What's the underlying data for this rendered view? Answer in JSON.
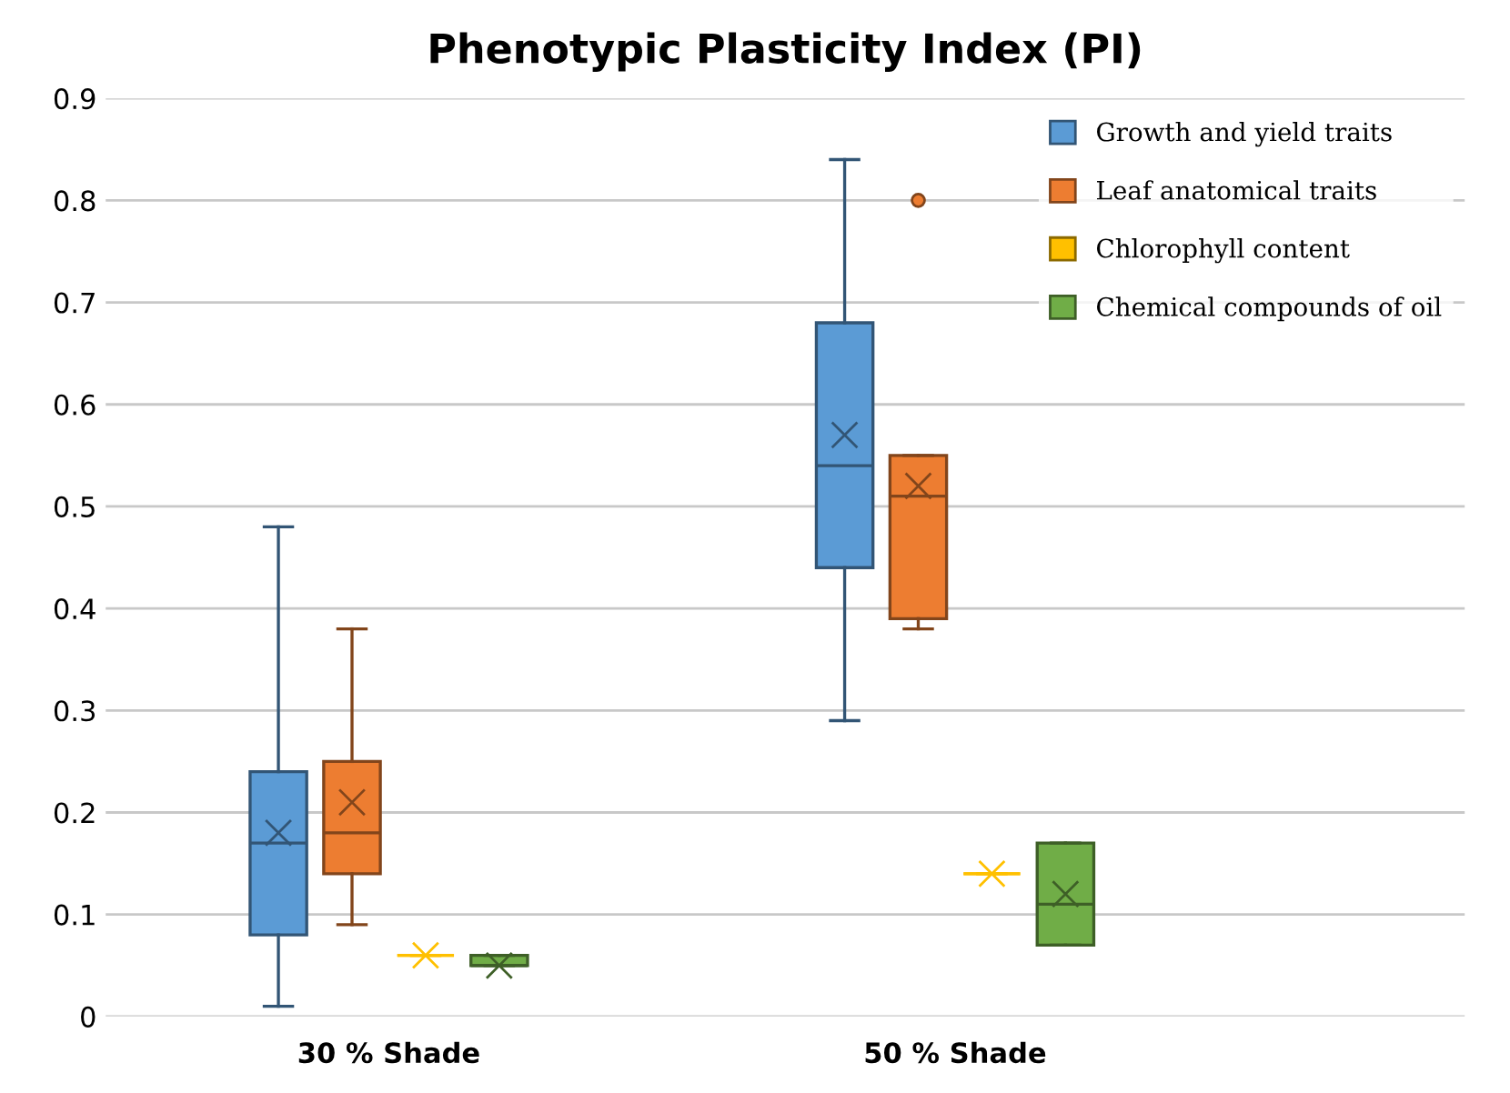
{
  "chart_data": {
    "type": "box",
    "title": "Phenotypic Plasticity Index (PI)",
    "categories": [
      "30 % Shade",
      "50 % Shade"
    ],
    "series": [
      {
        "name": "Growth and yield traits",
        "color": "#5b9bd5",
        "boxes": [
          {
            "low": 0.01,
            "q1": 0.08,
            "median": 0.17,
            "q3": 0.24,
            "high": 0.48,
            "mean": 0.18
          },
          {
            "low": 0.29,
            "q1": 0.44,
            "median": 0.54,
            "q3": 0.68,
            "high": 0.84,
            "mean": 0.57
          }
        ]
      },
      {
        "name": "Leaf anatomical traits",
        "color": "#ed7d31",
        "boxes": [
          {
            "low": 0.09,
            "q1": 0.14,
            "median": 0.18,
            "q3": 0.25,
            "high": 0.38,
            "mean": 0.21
          },
          {
            "low": 0.38,
            "q1": 0.39,
            "median": 0.51,
            "q3": 0.55,
            "high": 0.55,
            "mean": 0.52,
            "outliers": [
              0.8
            ]
          }
        ]
      },
      {
        "name": "Chlorophyll content",
        "color": "#ffc000",
        "boxes": [
          {
            "low": 0.06,
            "q1": 0.06,
            "median": 0.06,
            "q3": 0.06,
            "high": 0.06,
            "mean": 0.06
          },
          {
            "low": 0.14,
            "q1": 0.14,
            "median": 0.14,
            "q3": 0.14,
            "high": 0.14,
            "mean": 0.14
          }
        ]
      },
      {
        "name": "Chemical compounds of oil",
        "color": "#70ad47",
        "boxes": [
          {
            "low": 0.05,
            "q1": 0.05,
            "median": 0.05,
            "q3": 0.06,
            "high": 0.06,
            "mean": 0.05
          },
          {
            "low": 0.07,
            "q1": 0.07,
            "median": 0.11,
            "q3": 0.17,
            "high": 0.17,
            "mean": 0.12
          }
        ]
      }
    ],
    "ylim": [
      0,
      0.9
    ],
    "yticks": [
      0,
      0.1,
      0.2,
      0.3,
      0.4,
      0.5,
      0.6,
      0.7,
      0.8,
      0.9
    ],
    "grid": "y",
    "legend": "top right",
    "marker": "cross"
  }
}
